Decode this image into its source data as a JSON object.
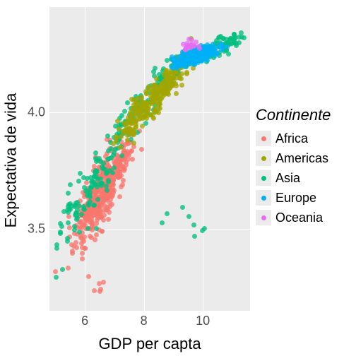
{
  "chart": {
    "type": "scatter",
    "xlabel": "GDP per capta",
    "ylabel": "Expectativa de vida",
    "xlim": [
      4.8,
      11.6
    ],
    "ylim": [
      3.15,
      4.45
    ],
    "xticks": [
      6,
      8,
      10
    ],
    "yticks": [
      3.5,
      4.0
    ],
    "xtick_labels": [
      "6",
      "8",
      "10"
    ],
    "ytick_labels": [
      "3.5",
      "4.0"
    ],
    "background_color": "#ebebeb",
    "grid_color": "#ffffff",
    "point_radius": 3.5,
    "point_opacity": 0.78,
    "legend_title": "Continente",
    "series": [
      {
        "name": "Africa",
        "color": "#f8766d"
      },
      {
        "name": "Americas",
        "color": "#a3a500"
      },
      {
        "name": "Asia",
        "color": "#00bf7d"
      },
      {
        "name": "Europe",
        "color": "#00b0f6"
      },
      {
        "name": "Oceania",
        "color": "#e76bf3"
      }
    ],
    "axis_label_fontsize": 22,
    "tick_fontsize": 18,
    "legend_title_fontsize": 22,
    "legend_label_fontsize": 18
  }
}
